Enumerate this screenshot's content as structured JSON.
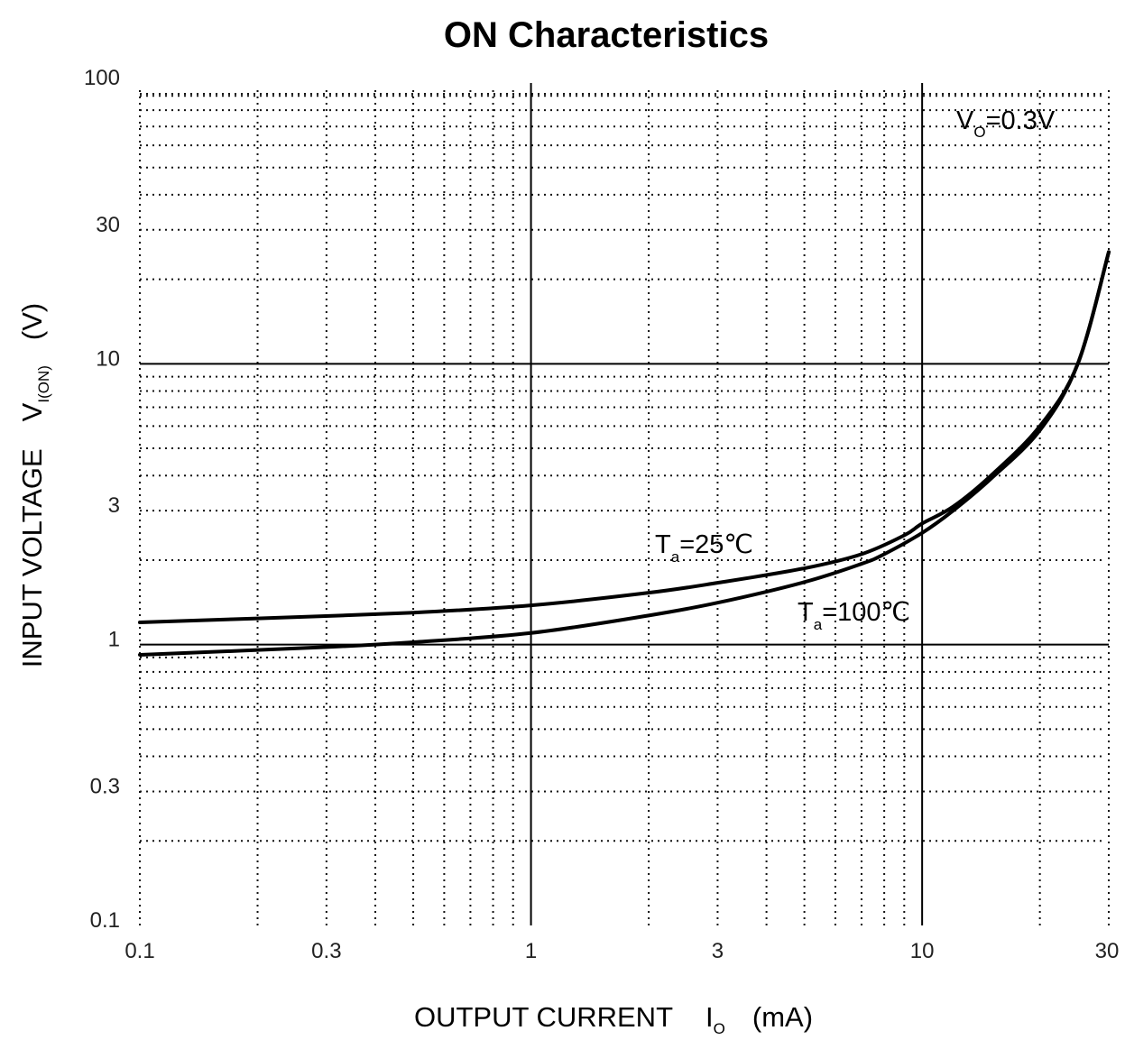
{
  "chart_data": {
    "type": "line",
    "title": "ON Characteristics",
    "xlabel": {
      "main": "OUTPUT CURRENT",
      "symbol": "I",
      "subscript": "O",
      "unit": "(mA)"
    },
    "ylabel": {
      "main": "INPUT VOLTAGE",
      "symbol": "V",
      "subscript": "I(ON)",
      "unit": "(V)"
    },
    "x_scale": "log",
    "y_scale": "log",
    "xlim": [
      0.1,
      30
    ],
    "ylim": [
      0.1,
      100
    ],
    "x_ticks": [
      {
        "value": 0.1,
        "label": "0.1"
      },
      {
        "value": 0.3,
        "label": "0.3"
      },
      {
        "value": 1,
        "label": "1"
      },
      {
        "value": 3,
        "label": "3"
      },
      {
        "value": 10,
        "label": "10"
      },
      {
        "value": 30,
        "label": "30"
      }
    ],
    "y_ticks": [
      {
        "value": 0.1,
        "label": "0.1"
      },
      {
        "value": 0.3,
        "label": "0.3"
      },
      {
        "value": 1,
        "label": "1"
      },
      {
        "value": 3,
        "label": "3"
      },
      {
        "value": 10,
        "label": "10"
      },
      {
        "value": 30,
        "label": "30"
      },
      {
        "value": 100,
        "label": "100"
      }
    ],
    "grid": true,
    "condition": {
      "symbol": "V",
      "subscript": "O",
      "text": "=0.3V"
    },
    "series": [
      {
        "label": {
          "symbol": "T",
          "subscript": "a",
          "text": "=25℃"
        },
        "x": [
          0.1,
          0.2,
          0.5,
          1,
          2,
          3,
          5,
          7,
          9,
          10,
          12,
          15,
          20,
          25,
          30
        ],
        "y": [
          1.2,
          1.24,
          1.3,
          1.38,
          1.53,
          1.66,
          1.87,
          2.1,
          2.45,
          2.7,
          3.1,
          4.0,
          6.0,
          10.0,
          25.0
        ]
      },
      {
        "label": {
          "symbol": "T",
          "subscript": "a",
          "text": "=100℃"
        },
        "x": [
          0.1,
          0.3,
          0.5,
          1,
          2,
          3,
          5,
          7,
          8,
          10,
          12,
          15,
          20,
          25,
          30
        ],
        "y": [
          0.92,
          0.98,
          1.02,
          1.1,
          1.27,
          1.41,
          1.67,
          1.94,
          2.1,
          2.5,
          3.0,
          3.9,
          5.8,
          10.0,
          25.0
        ]
      }
    ]
  }
}
